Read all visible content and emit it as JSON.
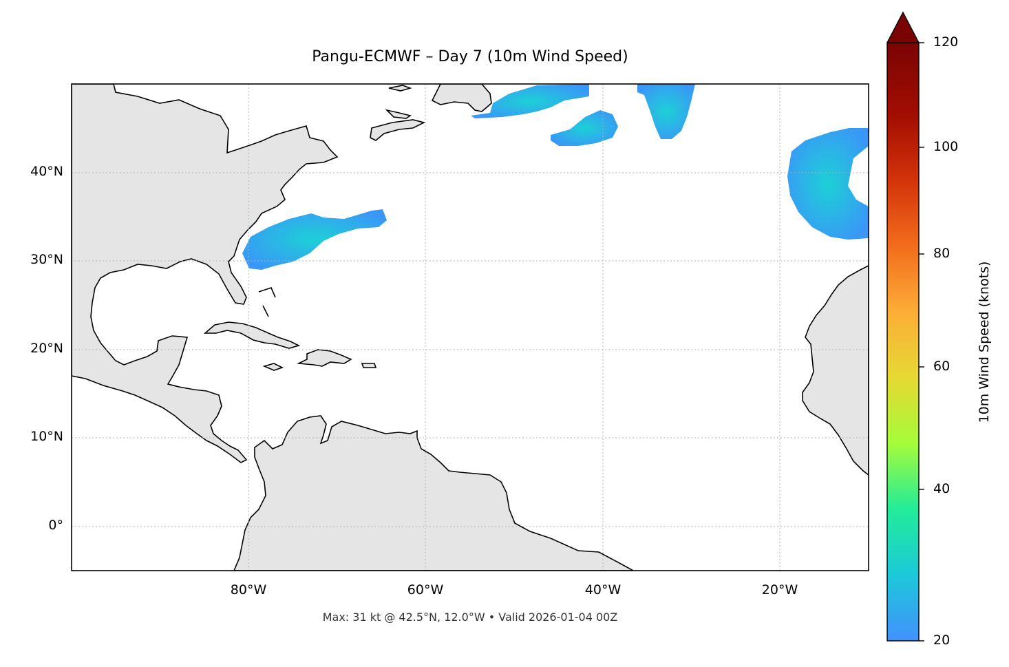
{
  "title": "Pangu-ECMWF – Day 7 (10m Wind Speed)",
  "footnote": "Max: 31 kt @ 42.5°N, 12.0°W • Valid 2026-01-04 00Z",
  "map": {
    "lon_range": [
      -100,
      -10
    ],
    "lat_range": [
      -5,
      50
    ],
    "lon_ticks": [
      {
        "value": -80,
        "label": "80°W"
      },
      {
        "value": -60,
        "label": "60°W"
      },
      {
        "value": -40,
        "label": "40°W"
      },
      {
        "value": -20,
        "label": "20°W"
      }
    ],
    "lat_ticks": [
      {
        "value": 40,
        "label": "40°N"
      },
      {
        "value": 30,
        "label": "30°N"
      },
      {
        "value": 20,
        "label": "20°N"
      },
      {
        "value": 10,
        "label": "10°N"
      },
      {
        "value": 0,
        "label": "0°"
      }
    ],
    "gridlines": true,
    "land_color": "#e5e5e5",
    "coast_color": "#000000",
    "border_color": "#666666"
  },
  "wind_max": {
    "value_kt": 31,
    "lat": 42.5,
    "lon": -12.0
  },
  "colorbar": {
    "label": "10m Wind Speed (knots)",
    "min": 20,
    "max": 120,
    "extend": "max",
    "ticks": [
      {
        "value": 120,
        "label": "120"
      },
      {
        "value": 100,
        "label": "100"
      },
      {
        "value": 80,
        "label": "80"
      },
      {
        "value": 60,
        "label": "60"
      },
      {
        "value": 40,
        "label": "40"
      },
      {
        "value": 20,
        "label": "20"
      }
    ],
    "stops": [
      "#4391fd",
      "#1cc9d9",
      "#22ec98",
      "#a5fc3a",
      "#e6d933",
      "#fcad37",
      "#f36c1c",
      "#d3330a",
      "#a20d02",
      "#7a0403"
    ]
  }
}
